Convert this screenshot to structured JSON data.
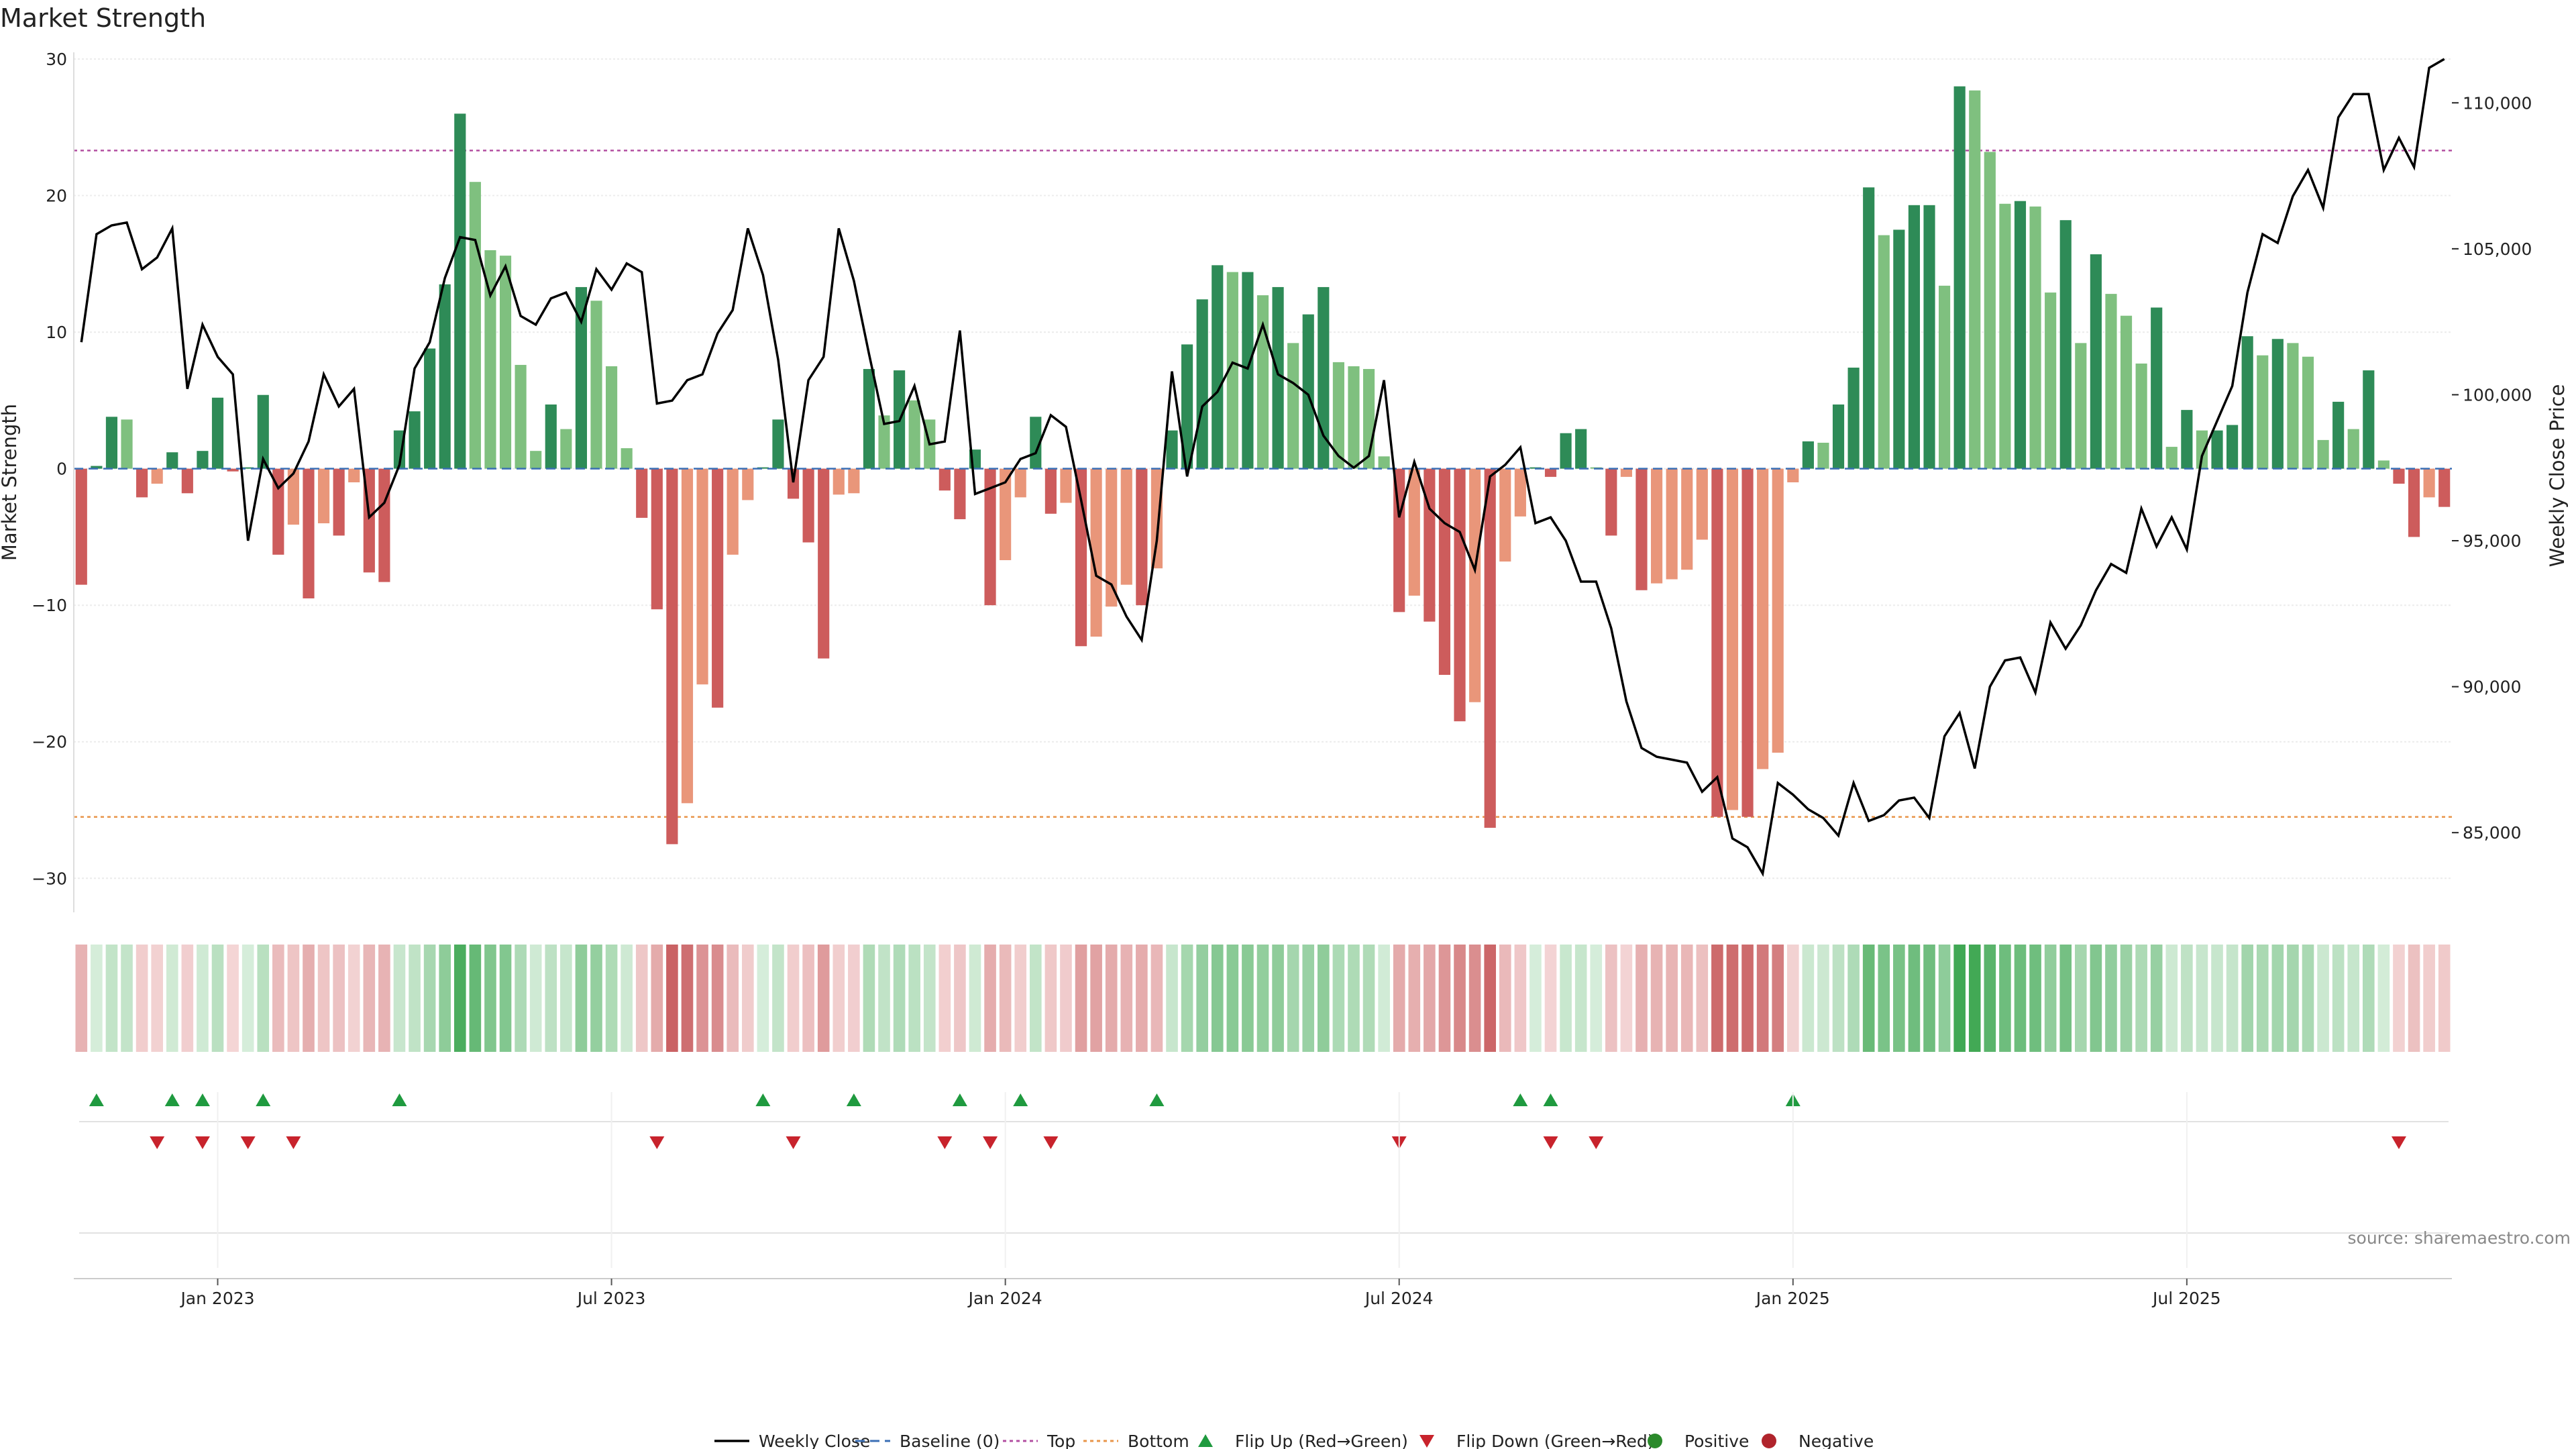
{
  "chart_data": {
    "type": "bar",
    "title": "Market Strength",
    "ylabel_left": "Market Strength",
    "ylabel_right": "Weekly Close Price",
    "ylim_left": [
      -32,
      30
    ],
    "ylim_right": [
      82500,
      111500
    ],
    "yticks_left": [
      30,
      20,
      10,
      0,
      -10,
      -20,
      -30
    ],
    "yticks_right": [
      {
        "value": 110000,
        "label": "110,000"
      },
      {
        "value": 105000,
        "label": "105,000"
      },
      {
        "value": 100000,
        "label": "100,000"
      },
      {
        "value": 95000,
        "label": "95,000"
      },
      {
        "value": 90000,
        "label": "90,000"
      },
      {
        "value": 85000,
        "label": "85,000"
      }
    ],
    "x_ticks": [
      {
        "index": 9,
        "label": "Jan 2023"
      },
      {
        "index": 35,
        "label": "Jul 2023"
      },
      {
        "index": 61,
        "label": "Jan 2024"
      },
      {
        "index": 87,
        "label": "Jul 2024"
      },
      {
        "index": 113,
        "label": "Jan 2025"
      },
      {
        "index": 139,
        "label": "Jul 2025"
      }
    ],
    "top_threshold": 23.3,
    "bottom_threshold": -25.5,
    "strength": [
      -8.5,
      0.2,
      3.8,
      3.6,
      -2.1,
      -1.1,
      1.2,
      -1.8,
      1.3,
      5.2,
      -0.2,
      0.1,
      5.4,
      -6.3,
      -4.1,
      -9.5,
      -4.0,
      -4.9,
      -1.0,
      -7.6,
      -8.3,
      2.8,
      4.2,
      8.8,
      13.5,
      26.0,
      21.0,
      16.0,
      15.6,
      7.6,
      1.3,
      4.7,
      2.9,
      13.3,
      12.3,
      7.5,
      1.5,
      -3.6,
      -10.3,
      -27.5,
      -24.5,
      -15.8,
      -17.5,
      -6.3,
      -2.3,
      0.1,
      3.6,
      -2.2,
      -5.4,
      -13.9,
      -1.9,
      -1.8,
      7.3,
      3.9,
      7.2,
      5.0,
      3.6,
      -1.6,
      -3.7,
      1.4,
      -10.0,
      -6.7,
      -2.1,
      3.8,
      -3.3,
      -2.5,
      -13.0,
      -12.3,
      -10.1,
      -8.5,
      -10.0,
      -7.3,
      2.8,
      9.1,
      12.4,
      14.9,
      14.4,
      14.4,
      12.7,
      13.3,
      9.2,
      11.3,
      13.3,
      7.8,
      7.5,
      7.3,
      0.9,
      -10.5,
      -9.3,
      -11.2,
      -15.1,
      -18.5,
      -17.1,
      -26.3,
      -6.8,
      -3.5,
      0.1,
      -0.6,
      2.6,
      2.9,
      0.1,
      -4.9,
      -0.6,
      -8.9,
      -8.4,
      -8.1,
      -7.4,
      -5.2,
      -25.5,
      -25.0,
      -25.5,
      -22.0,
      -20.8,
      -1.0,
      2.0,
      1.9,
      4.7,
      7.4,
      20.6,
      17.1,
      17.5,
      19.3,
      19.3,
      13.4,
      28.0,
      27.7,
      23.2,
      19.4,
      19.6,
      19.2,
      12.9,
      18.2,
      9.2,
      15.7,
      12.8,
      11.2,
      7.7,
      11.8,
      1.6,
      4.3,
      2.8,
      2.8,
      3.2,
      9.7,
      8.3,
      9.5,
      9.2,
      8.2,
      2.1,
      4.9,
      2.9,
      7.2,
      0.6,
      -1.1,
      -5.0,
      -2.1,
      -2.8
    ],
    "weekly_close": [
      101800,
      105500,
      105800,
      105900,
      104300,
      104700,
      105700,
      100200,
      102400,
      101300,
      100700,
      95000,
      97800,
      96800,
      97300,
      98400,
      100700,
      99600,
      100200,
      95800,
      96300,
      97600,
      100900,
      101800,
      104000,
      105400,
      105300,
      103400,
      104400,
      102700,
      102400,
      103300,
      103500,
      102500,
      104300,
      103600,
      104500,
      104200,
      99700,
      99800,
      100500,
      100700,
      102100,
      102900,
      105700,
      104100,
      101200,
      97000,
      100500,
      101300,
      105700,
      103900,
      101400,
      99000,
      99100,
      100300,
      98300,
      98400,
      102200,
      96600,
      96800,
      97000,
      97800,
      98000,
      99300,
      98900,
      96400,
      93800,
      93500,
      92400,
      91600,
      95000,
      100800,
      97200,
      99600,
      100100,
      101100,
      100900,
      102400,
      100700,
      100400,
      100000,
      98600,
      97900,
      97500,
      97900,
      100500,
      95800,
      97700,
      96100,
      95600,
      95300,
      94000,
      97200,
      97600,
      98200,
      95600,
      95800,
      95000,
      93600,
      93600,
      92000,
      89500,
      87900,
      87600,
      87500,
      87400,
      86400,
      86900,
      84800,
      84500,
      83600,
      86700,
      86300,
      85800,
      85500,
      84900,
      86700,
      85400,
      85600,
      86100,
      86200,
      85500,
      88300,
      89100,
      87200,
      90000,
      90900,
      91000,
      89800,
      92200,
      91300,
      92100,
      93300,
      94200,
      93900,
      96100,
      94800,
      95800,
      94700,
      97900,
      99100,
      100300,
      103500,
      105500,
      105200,
      106800,
      107700,
      106400,
      109500,
      110300,
      110300,
      107700,
      108800,
      107800,
      111200,
      111500
    ],
    "flip_up_indices": [
      1,
      6,
      8,
      12,
      21,
      45,
      51,
      58,
      62,
      71,
      95,
      97,
      113
    ],
    "flip_down_indices": [
      5,
      8,
      11,
      14,
      38,
      47,
      57,
      60,
      64,
      87,
      97,
      100,
      153
    ],
    "legend": [
      {
        "key": "weekly_close",
        "label": "Weekly Close",
        "color": "#000000"
      },
      {
        "key": "baseline",
        "label": "Baseline (0)",
        "color": "#3b6fb5"
      },
      {
        "key": "top",
        "label": "Top",
        "color": "#b34fa1"
      },
      {
        "key": "bottom",
        "label": "Bottom",
        "color": "#e8954a"
      },
      {
        "key": "flip_up",
        "label": "Flip Up (Red→Green)",
        "color": "#1f9a3f"
      },
      {
        "key": "flip_down",
        "label": "Flip Down (Green→Red)",
        "color": "#c8232c"
      },
      {
        "key": "positive",
        "label": "Positive",
        "color": "#2b8a2b"
      },
      {
        "key": "negative",
        "label": "Negative",
        "color": "#b0242c"
      }
    ],
    "source": "source: sharemaestro.com"
  },
  "colors": {
    "pos_strong": "#2e8b57",
    "pos_light": "#7fc07f",
    "neg_strong": "#cd5c5c",
    "neg_light": "#e9967a"
  }
}
